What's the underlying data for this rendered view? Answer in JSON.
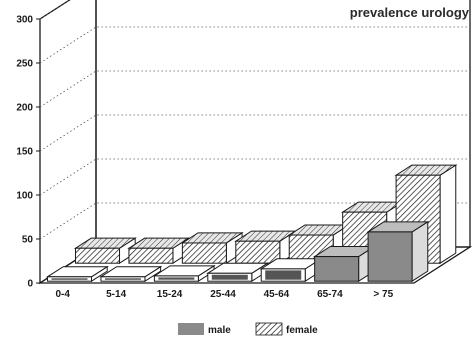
{
  "chart_data": {
    "type": "bar",
    "title": "prevalence urology",
    "categories": [
      "0-4",
      "5-14",
      "15-24",
      "25-44",
      "45-64",
      "65-74",
      "> 75"
    ],
    "series": [
      {
        "name": "male",
        "values": [
          5,
          5,
          6,
          9,
          14,
          28,
          56
        ]
      },
      {
        "name": "female",
        "values": [
          17,
          17,
          23,
          25,
          32,
          58,
          100
        ]
      }
    ],
    "yticks": [
      0,
      50,
      100,
      150,
      200,
      250,
      300
    ],
    "ylim": [
      0,
      300
    ],
    "legend_position": "bottom-center",
    "grid": true,
    "three_d": true,
    "colors": {
      "male": "#8a8a8a",
      "female_hatch": "#1a1a1a"
    }
  }
}
